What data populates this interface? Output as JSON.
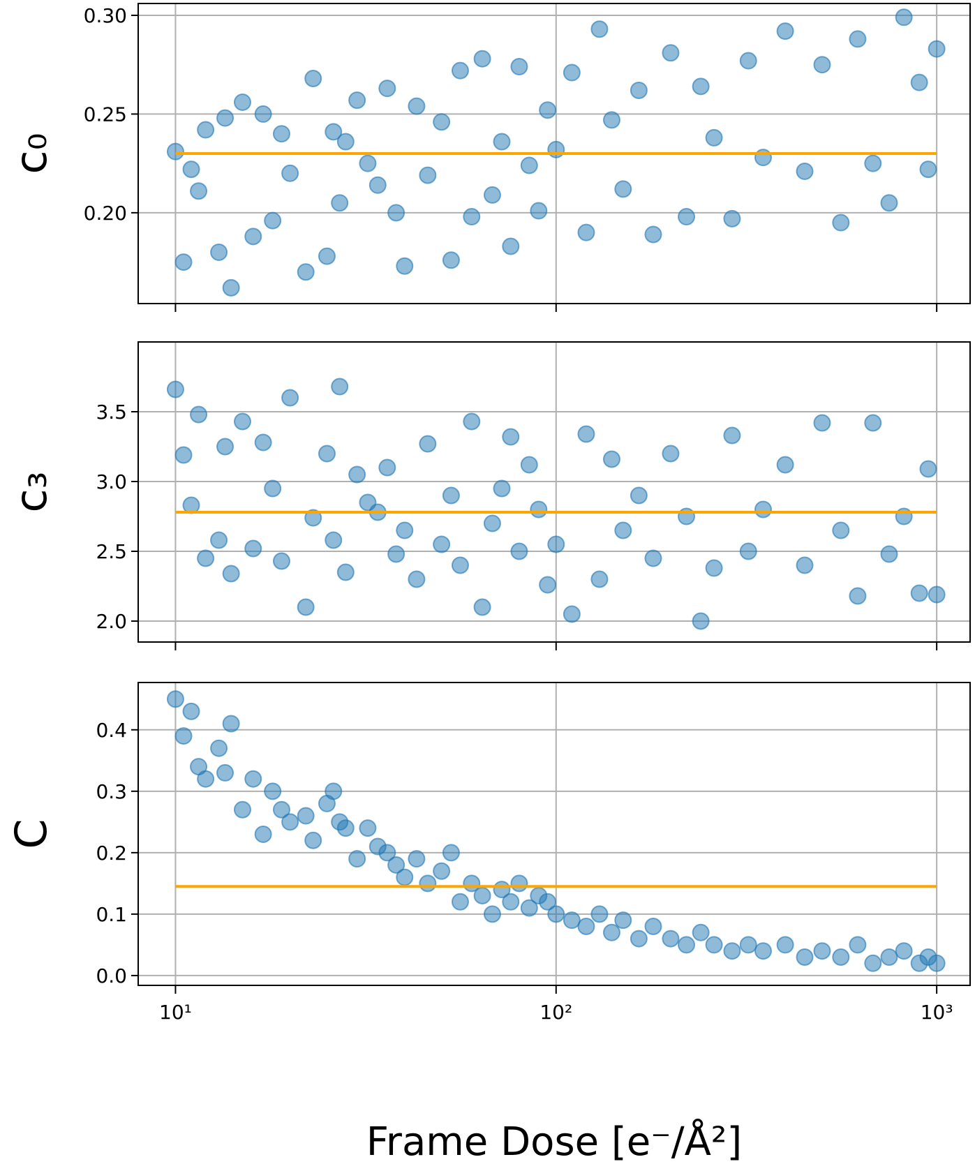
{
  "chart_data": [
    {
      "type": "scatter",
      "ylabel": "c₀",
      "color": "#1f77b4",
      "grid": true,
      "xscale": "log",
      "xlim": [
        7.98,
        1224
      ],
      "xticks": [
        10,
        100,
        1000
      ],
      "ylim": [
        0.154,
        0.306
      ],
      "yticks": [
        {
          "value": 0.2,
          "label": "0.20"
        },
        {
          "value": 0.25,
          "label": "0.25"
        },
        {
          "value": 0.3,
          "label": "0.30"
        }
      ],
      "reference_line": {
        "value": 0.23,
        "color": "#ffa500",
        "x": [
          10,
          1000
        ]
      },
      "x": [
        10,
        10.5,
        11,
        11.5,
        12,
        13,
        13.5,
        14,
        15,
        16,
        17,
        18,
        19,
        20,
        22,
        23,
        25,
        26,
        27,
        28,
        30,
        32,
        34,
        36,
        38,
        40,
        43,
        46,
        50,
        53,
        56,
        60,
        64,
        68,
        72,
        76,
        80,
        85,
        90,
        95,
        100,
        110,
        120,
        130,
        140,
        150,
        165,
        180,
        200,
        220,
        240,
        260,
        290,
        320,
        350,
        400,
        450,
        500,
        560,
        620,
        680,
        750,
        820,
        900,
        950,
        1000
      ],
      "values": [
        0.231,
        0.175,
        0.222,
        0.211,
        0.242,
        0.18,
        0.248,
        0.162,
        0.256,
        0.188,
        0.25,
        0.196,
        0.24,
        0.22,
        0.17,
        0.268,
        0.178,
        0.241,
        0.205,
        0.236,
        0.257,
        0.225,
        0.214,
        0.263,
        0.2,
        0.173,
        0.254,
        0.219,
        0.246,
        0.176,
        0.272,
        0.198,
        0.278,
        0.209,
        0.236,
        0.183,
        0.274,
        0.224,
        0.201,
        0.252,
        0.232,
        0.271,
        0.19,
        0.293,
        0.247,
        0.212,
        0.262,
        0.189,
        0.281,
        0.198,
        0.264,
        0.238,
        0.197,
        0.277,
        0.228,
        0.292,
        0.221,
        0.275,
        0.195,
        0.288,
        0.225,
        0.205,
        0.299,
        0.266,
        0.222,
        0.283
      ]
    },
    {
      "type": "scatter",
      "ylabel": "c₃",
      "color": "#1f77b4",
      "grid": true,
      "xscale": "log",
      "xlim": [
        7.98,
        1224
      ],
      "xticks": [
        10,
        100,
        1000
      ],
      "ylim": [
        1.85,
        4.0
      ],
      "yticks": [
        {
          "value": 2,
          "label": "2.0"
        },
        {
          "value": 2.5,
          "label": "2.5"
        },
        {
          "value": 3,
          "label": "3.0"
        },
        {
          "value": 3.5,
          "label": "3.5"
        }
      ],
      "reference_line": {
        "value": 2.78,
        "color": "#ffa500",
        "x": [
          10,
          1000
        ]
      },
      "x": [
        10,
        10.5,
        11,
        11.5,
        12,
        13,
        13.5,
        14,
        15,
        16,
        17,
        18,
        19,
        20,
        22,
        23,
        25,
        26,
        27,
        28,
        30,
        32,
        34,
        36,
        38,
        40,
        43,
        46,
        50,
        53,
        56,
        60,
        64,
        68,
        72,
        76,
        80,
        85,
        90,
        95,
        100,
        110,
        120,
        130,
        140,
        150,
        165,
        180,
        200,
        220,
        240,
        260,
        290,
        320,
        350,
        400,
        450,
        500,
        560,
        620,
        680,
        750,
        820,
        900,
        950,
        1000
      ],
      "values": [
        3.66,
        3.19,
        2.83,
        3.48,
        2.45,
        2.58,
        3.25,
        2.34,
        3.43,
        2.52,
        3.28,
        2.95,
        2.43,
        3.6,
        2.1,
        2.74,
        3.2,
        2.58,
        3.68,
        2.35,
        3.05,
        2.85,
        2.78,
        3.1,
        2.48,
        2.65,
        2.3,
        3.27,
        2.55,
        2.9,
        2.4,
        3.43,
        2.1,
        2.7,
        2.95,
        3.32,
        2.5,
        3.12,
        2.8,
        2.26,
        2.55,
        2.05,
        3.34,
        2.3,
        3.16,
        2.65,
        2.9,
        2.45,
        3.2,
        2.75,
        2.0,
        2.38,
        3.33,
        2.5,
        2.8,
        3.12,
        2.4,
        3.42,
        2.65,
        2.18,
        3.42,
        2.48,
        2.75,
        2.2,
        3.09,
        2.19
      ]
    },
    {
      "type": "scatter",
      "ylabel": "C",
      "xlabel": "Frame Dose [e⁻/Å²]",
      "color": "#1f77b4",
      "grid": true,
      "xscale": "log",
      "xlim": [
        7.98,
        1224
      ],
      "xticks": [
        {
          "value": 10,
          "label": "10¹"
        },
        {
          "value": 100,
          "label": "10²"
        },
        {
          "value": 1000,
          "label": "10³"
        }
      ],
      "ylim": [
        -0.016,
        0.477
      ],
      "yticks": [
        {
          "value": 0,
          "label": "0.0"
        },
        {
          "value": 0.1,
          "label": "0.1"
        },
        {
          "value": 0.2,
          "label": "0.2"
        },
        {
          "value": 0.3,
          "label": "0.3"
        },
        {
          "value": 0.4,
          "label": "0.4"
        }
      ],
      "reference_line": {
        "value": 0.145,
        "color": "#ffa500",
        "x": [
          10,
          1000
        ]
      },
      "x": [
        10,
        10.5,
        11,
        11.5,
        12,
        13,
        13.5,
        14,
        15,
        16,
        17,
        18,
        19,
        20,
        22,
        23,
        25,
        26,
        27,
        28,
        30,
        32,
        34,
        36,
        38,
        40,
        43,
        46,
        50,
        53,
        56,
        60,
        64,
        68,
        72,
        76,
        80,
        85,
        90,
        95,
        100,
        110,
        120,
        130,
        140,
        150,
        165,
        180,
        200,
        220,
        240,
        260,
        290,
        320,
        350,
        400,
        450,
        500,
        560,
        620,
        680,
        750,
        820,
        900,
        950,
        1000
      ],
      "values": [
        0.45,
        0.39,
        0.43,
        0.34,
        0.32,
        0.37,
        0.33,
        0.41,
        0.27,
        0.32,
        0.23,
        0.3,
        0.27,
        0.25,
        0.26,
        0.22,
        0.28,
        0.3,
        0.25,
        0.24,
        0.19,
        0.24,
        0.21,
        0.2,
        0.18,
        0.16,
        0.19,
        0.15,
        0.17,
        0.2,
        0.12,
        0.15,
        0.13,
        0.1,
        0.14,
        0.12,
        0.15,
        0.11,
        0.13,
        0.12,
        0.1,
        0.09,
        0.08,
        0.1,
        0.07,
        0.09,
        0.06,
        0.08,
        0.06,
        0.05,
        0.07,
        0.05,
        0.04,
        0.05,
        0.04,
        0.05,
        0.03,
        0.04,
        0.03,
        0.05,
        0.02,
        0.03,
        0.04,
        0.02,
        0.03,
        0.02
      ]
    }
  ]
}
